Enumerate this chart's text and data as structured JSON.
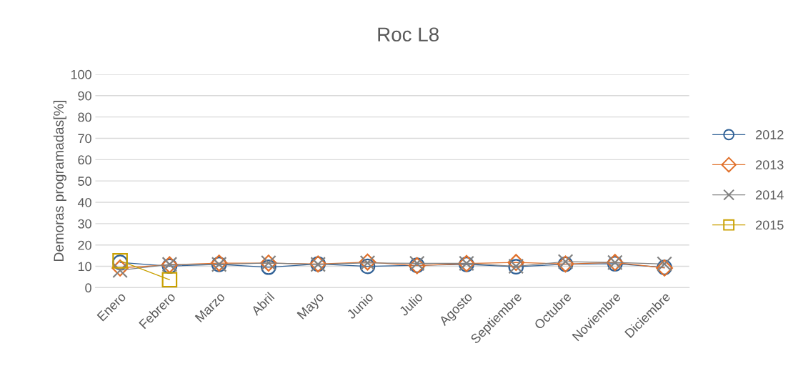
{
  "chart_data": {
    "type": "line",
    "title": "Roc L8",
    "ylabel": "Demoras programadas[%]",
    "categories": [
      "Enero",
      "Febrero",
      "Marzo",
      "Abril",
      "Mayo",
      "Junio",
      "Julio",
      "Agosto",
      "Septiembre",
      "Octubre",
      "Noviembre",
      "Diciembre"
    ],
    "series": [
      {
        "name": "2012",
        "color": "#2f6096",
        "marker": "circle",
        "values": [
          11.8,
          10.1,
          10.9,
          9.6,
          11.1,
          10.0,
          10.5,
          10.9,
          9.8,
          11.0,
          11.2,
          9.5
        ]
      },
      {
        "name": "2013",
        "color": "#e0702a",
        "marker": "diamond",
        "values": [
          9.2,
          10.7,
          11.5,
          11.5,
          11.1,
          12.0,
          10.3,
          11.3,
          11.8,
          11.1,
          11.8,
          9.2
        ]
      },
      {
        "name": "2014",
        "color": "#808080",
        "marker": "cross",
        "values": [
          8.1,
          10.9,
          10.9,
          11.6,
          10.9,
          11.6,
          11.4,
          11.4,
          10.0,
          12.2,
          11.8,
          11.1
        ]
      },
      {
        "name": "2015",
        "color": "#c9a000",
        "marker": "square",
        "values": [
          12.6,
          3.7,
          null,
          null,
          null,
          null,
          null,
          null,
          null,
          null,
          null,
          null
        ]
      }
    ],
    "ylim": [
      0,
      100
    ],
    "yticks": [
      0,
      10,
      20,
      30,
      40,
      50,
      60,
      70,
      80,
      90,
      100
    ],
    "grid": "y",
    "legend": "right"
  }
}
